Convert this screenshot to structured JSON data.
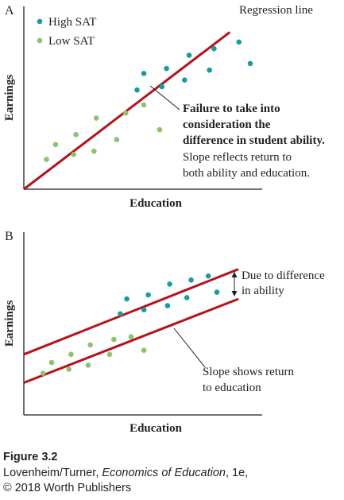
{
  "colors": {
    "high_sat": "#1b9aa0",
    "low_sat": "#8fc16e",
    "line": "#b5121b",
    "axis": "#231f20"
  },
  "chart_data": [
    {
      "type": "scatter",
      "panel": "A",
      "xlabel": "Education",
      "ylabel": "Earnings",
      "xlim": [
        0,
        10
      ],
      "ylim": [
        0,
        10
      ],
      "legend": {
        "placement": "top-left",
        "entries": [
          {
            "name": "High SAT",
            "color_key": "high_sat"
          },
          {
            "name": "Low SAT",
            "color_key": "low_sat"
          }
        ]
      },
      "series": [
        {
          "name": "High SAT",
          "color_key": "high_sat",
          "points": [
            [
              5.0,
              6.0
            ],
            [
              5.3,
              7.0
            ],
            [
              6.1,
              6.2
            ],
            [
              6.3,
              7.3
            ],
            [
              7.1,
              6.6
            ],
            [
              7.3,
              8.1
            ],
            [
              8.2,
              7.2
            ],
            [
              8.4,
              8.5
            ],
            [
              9.5,
              8.9
            ],
            [
              10.0,
              7.6
            ]
          ]
        },
        {
          "name": "Low SAT",
          "color_key": "low_sat",
          "points": [
            [
              1.0,
              1.8
            ],
            [
              1.4,
              2.7
            ],
            [
              2.2,
              2.1
            ],
            [
              2.3,
              3.3
            ],
            [
              3.1,
              2.3
            ],
            [
              3.2,
              4.3
            ],
            [
              4.1,
              3.0
            ],
            [
              4.5,
              4.6
            ],
            [
              5.3,
              5.1
            ],
            [
              6.0,
              3.6
            ]
          ]
        }
      ],
      "lines": [
        {
          "name": "Regression line",
          "from": [
            0,
            0
          ],
          "to": [
            9.1,
            9.5
          ]
        }
      ],
      "annotations": {
        "line_label": "Regression line",
        "bold_lines": [
          "Failure to take into",
          "consideration the",
          "difference in student ability."
        ],
        "plain_lines": [
          "Slope reflects return to",
          "both ability and education."
        ]
      }
    },
    {
      "type": "scatter",
      "panel": "B",
      "xlabel": "Education",
      "ylabel": "Earnings",
      "xlim": [
        0,
        10
      ],
      "ylim": [
        0,
        10
      ],
      "series": [
        {
          "name": "High SAT",
          "color_key": "high_sat",
          "points": [
            [
              4.5,
              5.6
            ],
            [
              4.8,
              6.7
            ],
            [
              5.6,
              5.9
            ],
            [
              5.8,
              7.0
            ],
            [
              6.7,
              6.2
            ],
            [
              6.8,
              7.8
            ],
            [
              7.6,
              6.8
            ],
            [
              7.8,
              8.1
            ],
            [
              8.6,
              8.4
            ],
            [
              9.0,
              7.2
            ]
          ]
        },
        {
          "name": "Low SAT",
          "color_key": "low_sat",
          "points": [
            [
              0.9,
              1.2
            ],
            [
              1.3,
              2.0
            ],
            [
              2.1,
              1.5
            ],
            [
              2.2,
              2.6
            ],
            [
              3.0,
              1.8
            ],
            [
              3.1,
              3.3
            ],
            [
              4.0,
              2.6
            ],
            [
              4.2,
              3.7
            ],
            [
              5.0,
              3.9
            ],
            [
              5.6,
              2.9
            ]
          ]
        }
      ],
      "lines": [
        {
          "name": "high",
          "from": [
            0,
            2.6
          ],
          "to": [
            10,
            8.9
          ]
        },
        {
          "name": "low",
          "from": [
            0,
            0.5
          ],
          "to": [
            10,
            6.7
          ]
        }
      ],
      "annotations": {
        "gap_lines": [
          "Due to difference",
          "in ability"
        ],
        "slope_lines": [
          "Slope shows return",
          "to education"
        ]
      }
    }
  ],
  "panel_labels": [
    "A",
    "B"
  ],
  "caption": {
    "figure": "Figure 3.2",
    "authors": "Lovenheim/Turner, ",
    "book": "Economics of Education",
    "edition": ", 1e,",
    "copyright": "© 2018 Worth Publishers"
  }
}
